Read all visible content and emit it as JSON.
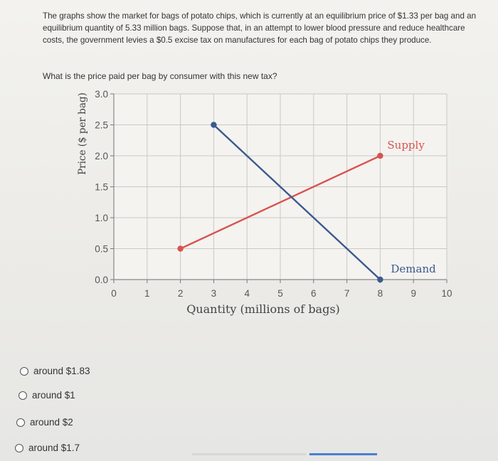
{
  "question": {
    "text": "The graphs show the market for bags of potato chips, which is currently at an equilibrium price of $1.33 per bag and an equilibrium quantity of 5.33 million bags. Suppose that, in an attempt to lower blood pressure and reduce healthcare costs, the government levies a $0.5 excise tax on manufactures for each bag of potato chips they produce.",
    "prompt": "What is the price paid per bag by consumer with this new tax?"
  },
  "chart_data": {
    "type": "line",
    "xlabel": "Quantity (millions of bags)",
    "ylabel": "Price ($ per bag)",
    "xlim": [
      0,
      10
    ],
    "ylim": [
      0,
      3.0
    ],
    "x_ticks": [
      "0",
      "1",
      "2",
      "3",
      "4",
      "5",
      "6",
      "7",
      "8",
      "9",
      "10"
    ],
    "y_ticks": [
      "0.0",
      "0.5",
      "1.0",
      "1.5",
      "2.0",
      "2.5",
      "3.0"
    ],
    "grid": true,
    "series": [
      {
        "name": "Supply",
        "color": "#d9534f",
        "x": [
          2,
          8
        ],
        "y": [
          0.5,
          2.0
        ]
      },
      {
        "name": "Demand",
        "color": "#3b5a8c",
        "x": [
          3,
          8
        ],
        "y": [
          2.5,
          0.0
        ]
      }
    ]
  },
  "choices": [
    {
      "label": "around $1.83"
    },
    {
      "label": "around $1"
    },
    {
      "label": "around $2"
    },
    {
      "label": "around $1.7"
    }
  ]
}
